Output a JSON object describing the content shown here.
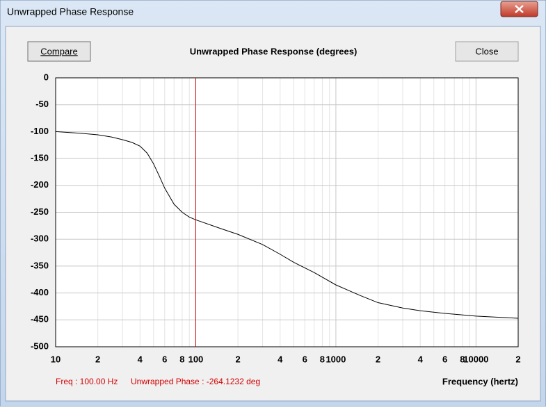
{
  "window": {
    "title": "Unwrapped Phase Response"
  },
  "buttons": [
    "Compare",
    "Close"
  ],
  "status": {
    "freq": "Freq : 100.00 Hz",
    "phase": "Unwrapped Phase : -264.1232 deg"
  },
  "chart_data": {
    "type": "line",
    "title": "Unwrapped Phase Response (degrees)",
    "xlabel": "Frequency (hertz)",
    "x": [
      10,
      15,
      20,
      25,
      30,
      35,
      40,
      45,
      50,
      55,
      60,
      70,
      80,
      90,
      100,
      150,
      200,
      300,
      400,
      500,
      700,
      1000,
      1500,
      2000,
      3000,
      4000,
      6000,
      10000,
      20000
    ],
    "series": [
      {
        "color": "#000000",
        "values": [
          -100,
          -103,
          -106,
          -110,
          -115,
          -120,
          -127,
          -140,
          -160,
          -183,
          -205,
          -235,
          -250,
          -259,
          -264,
          -280,
          -291,
          -310,
          -328,
          -343,
          -362,
          -385,
          -405,
          -418,
          -428,
          -433,
          -438,
          -443,
          -447
        ]
      }
    ],
    "xlim": [
      10,
      20000
    ],
    "ylim": [
      -500,
      0
    ],
    "log_x": true,
    "grid": true,
    "xticks": [
      10,
      {
        "value": 20,
        "label": "2"
      },
      {
        "value": 40,
        "label": "4"
      },
      {
        "value": 60,
        "label": "6"
      },
      {
        "value": 80,
        "label": "8"
      },
      100,
      {
        "value": 200,
        "label": "2"
      },
      {
        "value": 400,
        "label": "4"
      },
      {
        "value": 600,
        "label": "6"
      },
      {
        "value": 800,
        "label": "8"
      },
      1000,
      {
        "value": 2000,
        "label": "2"
      },
      {
        "value": 4000,
        "label": "4"
      },
      {
        "value": 6000,
        "label": "6"
      },
      {
        "value": 8000,
        "label": "8"
      },
      10000,
      {
        "value": 20000,
        "label": "2"
      }
    ],
    "yticks": [
      0,
      -50,
      -100,
      -150,
      -200,
      -250,
      -300,
      -350,
      -400,
      -450,
      -500
    ],
    "cursor": {
      "x": 100,
      "color": "#d40000"
    }
  }
}
